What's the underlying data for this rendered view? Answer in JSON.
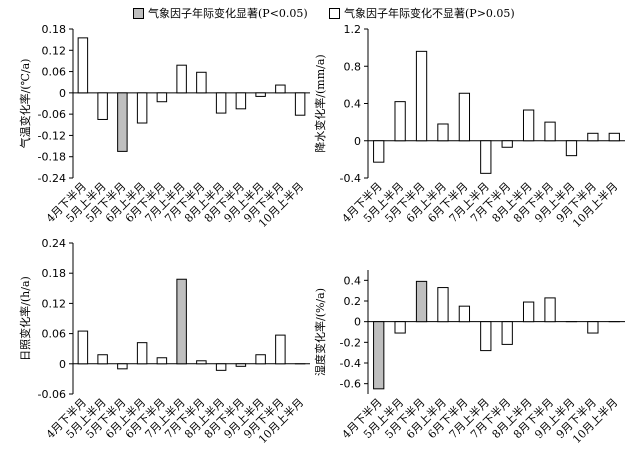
{
  "legend": {
    "significant_label": "气象因子年际变化显著(P<0.05)",
    "not_significant_label": "气象因子年际变化不显著(P>0.05)",
    "significant_color": "#bfbfbf",
    "not_significant_color": "#ffffff"
  },
  "chart_data": [
    {
      "type": "bar",
      "ylabel": "气温变化率/(℃/a)",
      "ylim": [
        -0.24,
        0.18
      ],
      "yticks": [
        "0.18",
        "0.12",
        "0.06",
        "0",
        "-0.06",
        "-0.12",
        "-0.18",
        "-0.24"
      ],
      "ytick_values": [
        0.18,
        0.12,
        0.06,
        0,
        -0.06,
        -0.12,
        -0.18,
        -0.24
      ],
      "categories": [
        "4月下半月",
        "5月上半月",
        "5月下半月",
        "6月上半月",
        "6月下半月",
        "7月上半月",
        "7月下半月",
        "8月上半月",
        "8月下半月",
        "9月上半月",
        "9月下半月",
        "10月上半月"
      ],
      "values": [
        0.155,
        -0.075,
        -0.165,
        -0.085,
        -0.025,
        0.078,
        0.058,
        -0.057,
        -0.045,
        -0.01,
        0.022,
        -0.063
      ],
      "significant": [
        false,
        false,
        true,
        false,
        false,
        false,
        false,
        false,
        false,
        false,
        false,
        false
      ]
    },
    {
      "type": "bar",
      "ylabel": "降水变化率/(mm/a)",
      "ylim": [
        -0.4,
        1.2
      ],
      "yticks": [
        "1.2",
        "0.8",
        "0.4",
        "0",
        "-0.4"
      ],
      "ytick_values": [
        1.2,
        0.8,
        0.4,
        0,
        -0.4
      ],
      "categories": [
        "4月下半月",
        "5月上半月",
        "5月下半月",
        "6月上半月",
        "6月下半月",
        "7月上半月",
        "7月下半月",
        "8月上半月",
        "8月下半月",
        "9月上半月",
        "9月下半月",
        "10月上半月"
      ],
      "values": [
        -0.23,
        0.42,
        0.96,
        0.18,
        0.51,
        -0.35,
        -0.07,
        0.33,
        0.2,
        -0.16,
        0.08,
        0.08
      ],
      "significant": [
        false,
        false,
        false,
        false,
        false,
        false,
        false,
        false,
        false,
        false,
        false,
        false
      ]
    },
    {
      "type": "bar",
      "ylabel": "日照变化率/(h/a)",
      "ylim": [
        -0.06,
        0.24
      ],
      "yticks": [
        "0.24",
        "0.18",
        "0.12",
        "0.06",
        "0",
        "-0.06"
      ],
      "ytick_values": [
        0.24,
        0.18,
        0.12,
        0.06,
        0,
        -0.06
      ],
      "categories": [
        "4月下半月",
        "5月上半月",
        "5月下半月",
        "6月上半月",
        "6月下半月",
        "7月上半月",
        "7月下半月",
        "8月上半月",
        "8月下半月",
        "9月上半月",
        "9月下半月",
        "10月上半月"
      ],
      "values": [
        0.065,
        0.018,
        -0.01,
        0.042,
        0.012,
        0.168,
        0.006,
        -0.013,
        -0.005,
        0.018,
        0.057,
        0.0
      ],
      "significant": [
        false,
        false,
        false,
        false,
        false,
        true,
        false,
        false,
        false,
        false,
        false,
        false
      ]
    },
    {
      "type": "bar",
      "ylabel": "湿度变化率/(%/a)",
      "ylim": [
        -0.7,
        0.5
      ],
      "yticks": [
        "0.4",
        "0.2",
        "0",
        "-0.2",
        "-0.4",
        "-0.6"
      ],
      "ytick_values": [
        0.4,
        0.2,
        0,
        -0.2,
        -0.4,
        -0.6
      ],
      "categories": [
        "4月下半月",
        "5月上半月",
        "5月下半月",
        "6月上半月",
        "6月下半月",
        "7月上半月",
        "7月下半月",
        "8月上半月",
        "8月下半月",
        "9月上半月",
        "9月下半月",
        "10月上半月"
      ],
      "values": [
        -0.65,
        -0.11,
        0.39,
        0.33,
        0.15,
        -0.28,
        -0.22,
        0.19,
        0.23,
        0.0,
        -0.11,
        0.0
      ],
      "significant": [
        true,
        false,
        true,
        false,
        false,
        false,
        false,
        false,
        false,
        false,
        false,
        false
      ]
    }
  ]
}
